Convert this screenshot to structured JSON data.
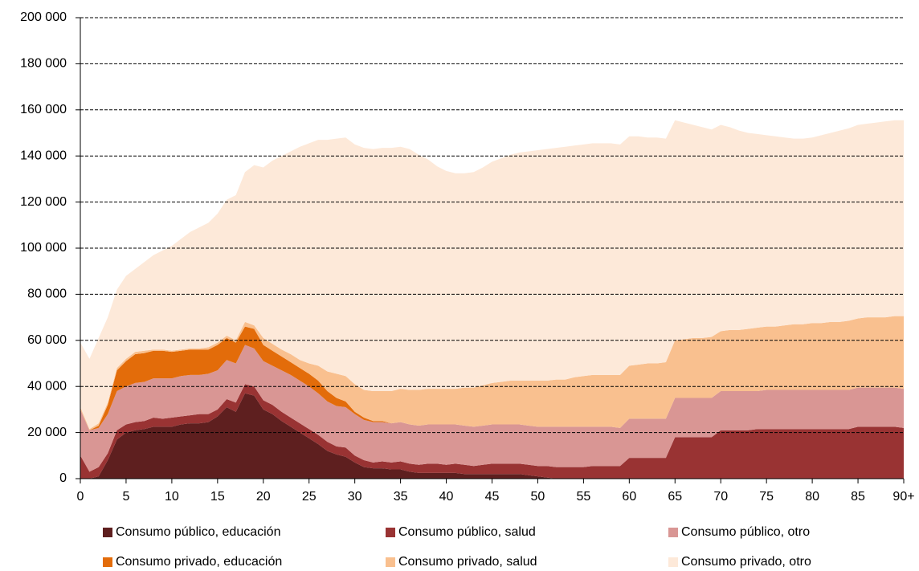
{
  "chart_data": {
    "type": "stacked-area",
    "x": [
      0,
      1,
      2,
      3,
      4,
      5,
      6,
      7,
      8,
      9,
      10,
      11,
      12,
      13,
      14,
      15,
      16,
      17,
      18,
      19,
      20,
      21,
      22,
      23,
      24,
      25,
      26,
      27,
      28,
      29,
      30,
      31,
      32,
      33,
      34,
      35,
      36,
      37,
      38,
      39,
      40,
      41,
      42,
      43,
      44,
      45,
      46,
      47,
      48,
      49,
      50,
      51,
      52,
      53,
      54,
      55,
      56,
      57,
      58,
      59,
      60,
      61,
      62,
      63,
      64,
      65,
      66,
      67,
      68,
      69,
      70,
      71,
      72,
      73,
      74,
      75,
      76,
      77,
      78,
      79,
      80,
      81,
      82,
      83,
      84,
      85,
      86,
      87,
      88,
      89,
      90
    ],
    "xlim": [
      0,
      90
    ],
    "xticks": [
      0,
      5,
      10,
      15,
      20,
      25,
      30,
      35,
      40,
      45,
      50,
      55,
      60,
      65,
      70,
      75,
      80,
      85,
      {
        "value": 90,
        "label": "90+"
      }
    ],
    "ylim": [
      0,
      200000
    ],
    "yticks": [
      0,
      {
        "value": 20000,
        "label": "20 000"
      },
      {
        "value": 40000,
        "label": "40 000"
      },
      {
        "value": 60000,
        "label": "60 000"
      },
      {
        "value": 80000,
        "label": "80 000"
      },
      {
        "value": 100000,
        "label": "100 000"
      },
      {
        "value": 120000,
        "label": "120 000"
      },
      {
        "value": 140000,
        "label": "140 000"
      },
      {
        "value": 160000,
        "label": "160 000"
      },
      {
        "value": 180000,
        "label": "180 000"
      },
      {
        "value": 200000,
        "label": "200 000"
      }
    ],
    "grid": true,
    "series": [
      {
        "name": "Consumo público, educación",
        "color": "#5e1f1f",
        "values": [
          0,
          0,
          1000,
          8000,
          17000,
          20000,
          21000,
          21500,
          22500,
          22500,
          22500,
          23500,
          24000,
          24000,
          24500,
          27000,
          31000,
          29000,
          37000,
          36000,
          30000,
          28000,
          25000,
          22500,
          20000,
          17500,
          15000,
          12000,
          10500,
          9500,
          7000,
          5000,
          4500,
          4500,
          4000,
          4000,
          3000,
          2500,
          2500,
          2500,
          2500,
          2500,
          2000,
          2000,
          2000,
          2000,
          2000,
          2000,
          2000,
          1500,
          1000,
          500,
          0,
          0,
          0,
          0,
          0,
          0,
          0,
          0,
          0,
          0,
          0,
          0,
          0,
          0,
          0,
          0,
          0,
          0,
          0,
          0,
          0,
          0,
          0,
          0,
          0,
          0,
          0,
          0,
          0,
          0,
          0,
          0,
          0,
          0,
          0,
          0,
          0,
          0,
          0
        ]
      },
      {
        "name": "Consumo público, salud",
        "color": "#993333",
        "values": [
          10000,
          3000,
          4000,
          3000,
          4000,
          3500,
          3500,
          3500,
          4000,
          3500,
          4000,
          3500,
          3500,
          4000,
          3500,
          3000,
          3500,
          4000,
          4000,
          4000,
          4000,
          4000,
          4000,
          4000,
          4000,
          4000,
          4000,
          4000,
          3500,
          4000,
          3000,
          3000,
          2500,
          3000,
          3000,
          3500,
          3500,
          3500,
          4000,
          4000,
          3500,
          4000,
          4000,
          3500,
          4000,
          4500,
          4500,
          4500,
          4500,
          4500,
          4500,
          5000,
          5000,
          5000,
          5000,
          5000,
          5500,
          5500,
          5500,
          5500,
          9000,
          9000,
          9000,
          9000,
          9000,
          18000,
          18000,
          18000,
          18000,
          18000,
          21000,
          21000,
          21000,
          21000,
          21500,
          21500,
          21500,
          21500,
          21500,
          21500,
          21500,
          21500,
          21500,
          21500,
          21500,
          22500,
          22500,
          22500,
          22500,
          22500,
          22000
        ]
      },
      {
        "name": "Consumo público, otro",
        "color": "#d99694",
        "values": [
          20000,
          18000,
          17000,
          17000,
          17000,
          16500,
          17000,
          17000,
          17000,
          17500,
          17000,
          17500,
          17500,
          17000,
          17500,
          17000,
          17000,
          17000,
          17000,
          16500,
          17000,
          17000,
          18000,
          18500,
          18500,
          18500,
          18000,
          17500,
          17500,
          17500,
          18000,
          17500,
          17500,
          17000,
          17000,
          17000,
          17000,
          17000,
          17000,
          17000,
          17500,
          17000,
          17000,
          17000,
          17000,
          17000,
          17000,
          17000,
          17000,
          17000,
          17000,
          17000,
          17500,
          17500,
          17500,
          17500,
          17000,
          17000,
          17000,
          16500,
          17000,
          17000,
          17000,
          17000,
          17000,
          17000,
          17000,
          17000,
          17000,
          17000,
          17000,
          17000,
          17000,
          17000,
          16500,
          17000,
          17000,
          17000,
          17000,
          17000,
          17000,
          17000,
          17000,
          17000,
          17000,
          17000,
          17000,
          17000,
          17000,
          17000,
          17000
        ]
      },
      {
        "name": "Consumo privado, educación",
        "color": "#e36c0a",
        "values": [
          0,
          0,
          1000,
          4000,
          9000,
          11000,
          12500,
          12500,
          12000,
          12000,
          11500,
          11000,
          11000,
          11000,
          10500,
          11000,
          9500,
          9000,
          8000,
          8500,
          7000,
          6500,
          6000,
          5500,
          5500,
          5500,
          5500,
          4500,
          3500,
          2500,
          1000,
          1000,
          500,
          500,
          0,
          0,
          0,
          0,
          0,
          0,
          0,
          0,
          0,
          0,
          0,
          0,
          0,
          0,
          0,
          0,
          0,
          0,
          0,
          0,
          0,
          0,
          0,
          0,
          0,
          0,
          0,
          0,
          0,
          0,
          0,
          0,
          0,
          0,
          0,
          0,
          0,
          0,
          0,
          0,
          0,
          0,
          0,
          0,
          0,
          0,
          0,
          0,
          0,
          0,
          0,
          0,
          0,
          0,
          0,
          0,
          0
        ]
      },
      {
        "name": "Consumo privado, salud",
        "color": "#f9c08f",
        "values": [
          1000,
          500,
          1000,
          1000,
          1000,
          1000,
          1000,
          1000,
          500,
          500,
          500,
          500,
          500,
          500,
          1000,
          1000,
          1000,
          1000,
          2000,
          1500,
          3000,
          3000,
          3000,
          3500,
          3500,
          4500,
          6500,
          8500,
          10500,
          11000,
          12000,
          12000,
          13000,
          13000,
          14000,
          14500,
          15000,
          15500,
          15500,
          15500,
          15500,
          15500,
          16500,
          17000,
          17500,
          18000,
          18500,
          19000,
          19000,
          19500,
          20000,
          20000,
          20500,
          20500,
          21500,
          22000,
          22500,
          22500,
          22500,
          23000,
          23000,
          23500,
          24000,
          24000,
          24500,
          25000,
          25500,
          26000,
          26000,
          26500,
          26000,
          26500,
          26500,
          27000,
          27500,
          27500,
          27500,
          28000,
          28500,
          28500,
          29000,
          29000,
          29500,
          29500,
          30000,
          30000,
          30500,
          30500,
          30500,
          31000,
          31500
        ]
      },
      {
        "name": "Consumo privado, otro",
        "color": "#fde9d9",
        "values": [
          28000,
          30500,
          37000,
          37000,
          34000,
          36000,
          36000,
          38500,
          41000,
          43000,
          45500,
          48000,
          50500,
          52500,
          54000,
          56000,
          59000,
          63000,
          65000,
          69500,
          74000,
          79500,
          84000,
          88000,
          92500,
          95500,
          98000,
          100500,
          102000,
          103500,
          104000,
          105000,
          105000,
          105500,
          105500,
          105000,
          104500,
          102000,
          99500,
          96500,
          94500,
          93500,
          93000,
          93500,
          94500,
          96000,
          97000,
          98000,
          99000,
          99500,
          100000,
          100500,
          100500,
          101000,
          100500,
          100500,
          100500,
          100500,
          100500,
          100000,
          99500,
          99000,
          98000,
          98000,
          97000,
          95500,
          94000,
          92500,
          91500,
          90000,
          89500,
          88000,
          86500,
          85000,
          84000,
          83000,
          82500,
          81500,
          80500,
          80500,
          80500,
          81500,
          82000,
          83000,
          83500,
          84000,
          84000,
          84500,
          85000,
          85000,
          85000
        ]
      }
    ]
  }
}
